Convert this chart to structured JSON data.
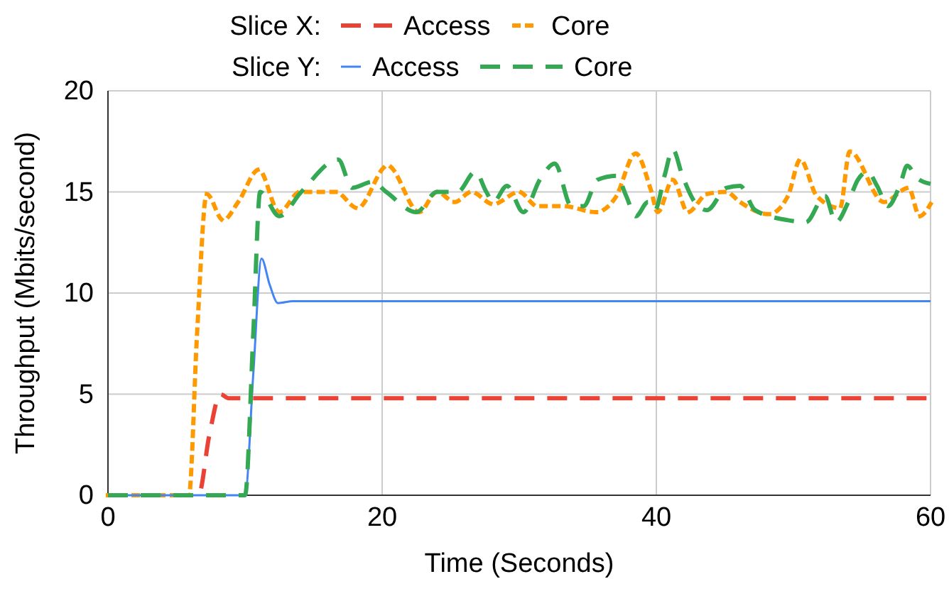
{
  "chart_data": {
    "type": "line",
    "xlabel": "Time (Seconds)",
    "ylabel": "Throughput (Mbits/second)",
    "xlim": [
      0,
      60
    ],
    "xticks": [
      0,
      20,
      40,
      60
    ],
    "ylim": [
      0,
      20
    ],
    "yticks": [
      0,
      5,
      10,
      15,
      20
    ],
    "grid": true,
    "legend": "top",
    "annotations": [
      "Slice X:",
      "Slice Y:"
    ],
    "series": [
      {
        "name": "Access",
        "color": "#ea4335",
        "line_style": "dashed",
        "x": [
          0,
          6.6,
          7.4,
          8.2,
          8.8,
          10,
          20,
          40,
          60
        ],
        "values": [
          0,
          0,
          3,
          5.0,
          4.8,
          4.8,
          4.8,
          4.8,
          4.8
        ]
      },
      {
        "name": "Core",
        "color": "#ff9900",
        "line_style": "dotted",
        "x": [
          0,
          5.9,
          6.5,
          7.2,
          8.4,
          9.5,
          11.0,
          12.5,
          14.0,
          16.6,
          18.2,
          20.4,
          22.7,
          24.0,
          25.3,
          26.5,
          28.1,
          30.0,
          31.3,
          33.2,
          35.6,
          37.0,
          38.5,
          39.6,
          40.1,
          41.2,
          42.3,
          43.7,
          45.1,
          46.1,
          48.2,
          49.6,
          50.5,
          51.7,
          53.4,
          54.1,
          56.6,
          58.4,
          59.2,
          60
        ],
        "values": [
          0,
          0,
          8,
          14.9,
          13.6,
          14.5,
          16.1,
          14.0,
          15.0,
          15.0,
          14.2,
          16.3,
          14.0,
          15.0,
          14.5,
          15.0,
          14.4,
          15.0,
          14.3,
          14.3,
          14.0,
          14.7,
          16.9,
          15.1,
          14.0,
          15.6,
          14.0,
          14.9,
          15.0,
          14.5,
          13.9,
          14.8,
          16.6,
          14.8,
          14.2,
          17.0,
          14.5,
          15.2,
          13.8,
          14.4
        ]
      },
      {
        "name": "Access",
        "color": "#4285f4",
        "line_style": "solid",
        "x": [
          0,
          10.0,
          10.6,
          11.2,
          11.8,
          12.4,
          13.5,
          20,
          40,
          60
        ],
        "values": [
          0,
          0,
          6,
          11.7,
          10.4,
          9.5,
          9.6,
          9.6,
          9.6,
          9.6
        ]
      },
      {
        "name": "Core",
        "color": "#34a853",
        "line_style": "dashed",
        "x": [
          0,
          10.0,
          10.6,
          11.1,
          12.5,
          14.1,
          16.8,
          17.8,
          19.3,
          20.3,
          22.5,
          24.0,
          25.5,
          26.8,
          27.6,
          28.1,
          29.1,
          30.3,
          31.5,
          32.6,
          33.8,
          34.7,
          35.7,
          37.1,
          37.8,
          38.5,
          39.4,
          39.9,
          40.6,
          41.2,
          41.9,
          42.8,
          43.7,
          45.1,
          46.1,
          47.2,
          49.6,
          50.9,
          52.3,
          53.1,
          54.0,
          54.7,
          55.4,
          56.1,
          56.9,
          57.8,
          58.3,
          59.0,
          60
        ],
        "values": [
          0,
          0,
          8,
          15.0,
          13.8,
          15.0,
          16.6,
          15.2,
          15.5,
          15.0,
          14.0,
          15.0,
          15.0,
          16.0,
          15.0,
          14.5,
          15.3,
          14.0,
          15.6,
          16.4,
          14.3,
          14.3,
          15.6,
          15.8,
          14.8,
          13.8,
          14.5,
          14.1,
          15.8,
          17.1,
          15.8,
          14.5,
          14.1,
          15.2,
          15.3,
          14.1,
          13.6,
          13.5,
          14.8,
          13.5,
          14.5,
          15.6,
          16.0,
          15.3,
          14.3,
          15.4,
          16.3,
          15.7,
          15.4
        ]
      }
    ]
  }
}
